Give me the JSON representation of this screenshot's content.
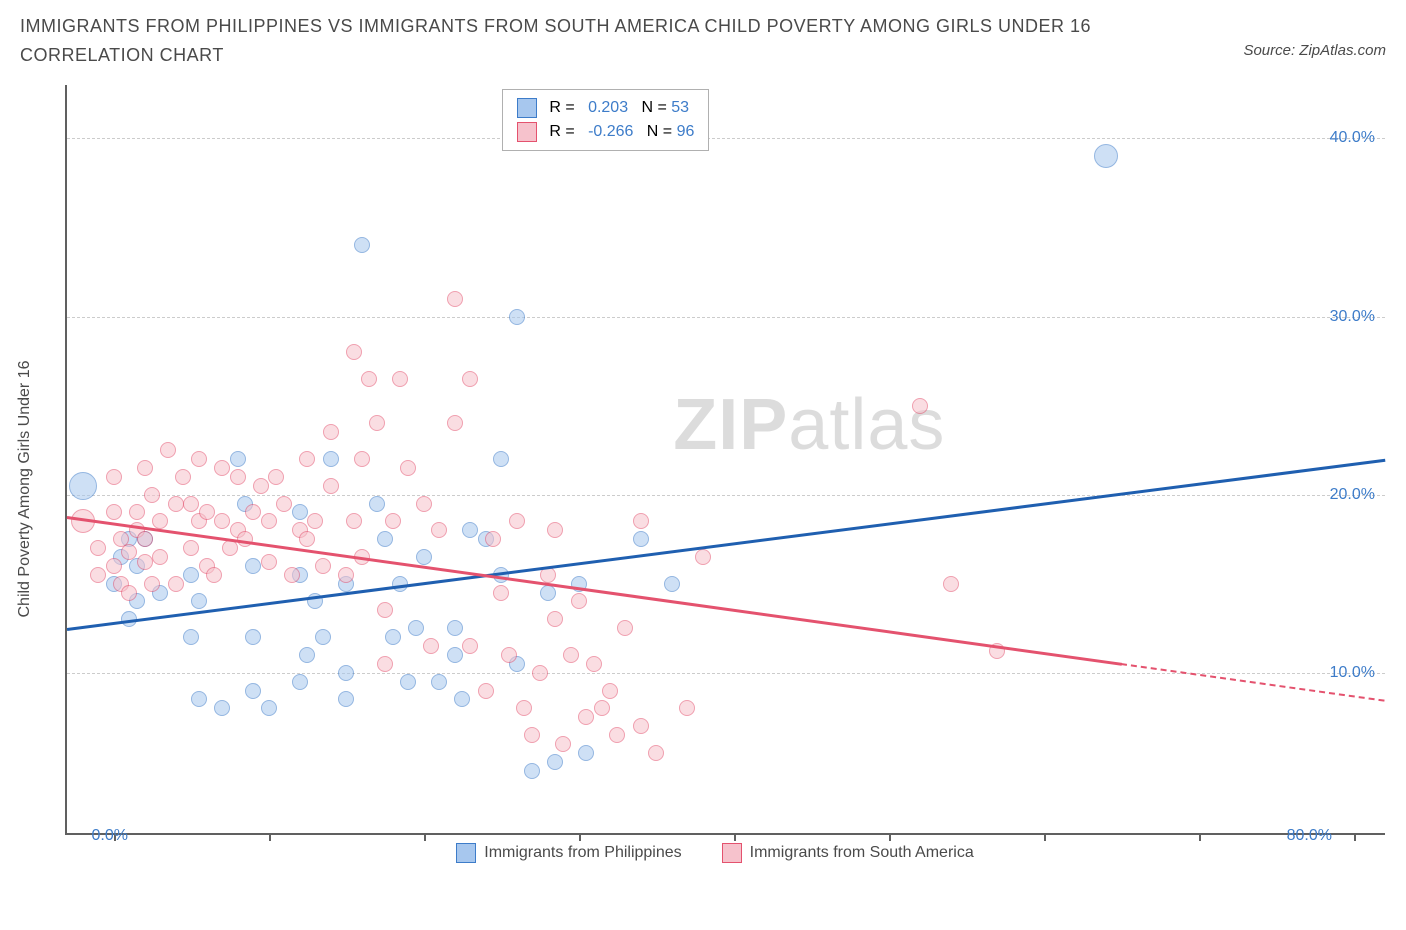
{
  "title": "IMMIGRANTS FROM PHILIPPINES VS IMMIGRANTS FROM SOUTH AMERICA CHILD POVERTY AMONG GIRLS UNDER 16 CORRELATION CHART",
  "source": "Source: ZipAtlas.com",
  "y_axis_label": "Child Poverty Among Girls Under 16",
  "watermark_bold": "ZIP",
  "watermark_light": "atlas",
  "chart": {
    "type": "scatter",
    "background_color": "#ffffff",
    "grid_color": "#cccccc",
    "axis_color": "#606060",
    "tick_label_color": "#3d7cc9",
    "xlim": [
      -3,
      82
    ],
    "ylim": [
      1,
      43
    ],
    "y_ticks": [
      10,
      20,
      30,
      40
    ],
    "y_tick_labels": [
      "10.0%",
      "20.0%",
      "30.0%",
      "40.0%"
    ],
    "x_ticks": [
      0,
      10,
      20,
      30,
      40,
      50,
      60,
      70,
      80
    ],
    "x_tick_labels": {
      "0": "0.0%",
      "80": "80.0%"
    },
    "point_radius": 8,
    "point_opacity": 0.55,
    "point_border_width": 1.2
  },
  "series": [
    {
      "name": "Immigrants from Philippines",
      "fill_color": "#a7c7ee",
      "stroke_color": "#3d7cc9",
      "line_color": "#1f5fb0",
      "R": "0.203",
      "N": "53",
      "trend": {
        "x1": -3,
        "y1": 12.5,
        "x2": 82,
        "y2": 22.0,
        "dash_from_x": null
      },
      "points": [
        [
          -2,
          20.5,
          14
        ],
        [
          0,
          15
        ],
        [
          0.5,
          16.5
        ],
        [
          1,
          17.5
        ],
        [
          1.5,
          16
        ],
        [
          1.5,
          14
        ],
        [
          2,
          17.5
        ],
        [
          1,
          13
        ],
        [
          3,
          14.5
        ],
        [
          5,
          15.5
        ],
        [
          5.5,
          14
        ],
        [
          5,
          12
        ],
        [
          5.5,
          8.5
        ],
        [
          7,
          8
        ],
        [
          8,
          22
        ],
        [
          8.5,
          19.5
        ],
        [
          9,
          16
        ],
        [
          9,
          12
        ],
        [
          9,
          9
        ],
        [
          10,
          8
        ],
        [
          12,
          15.5
        ],
        [
          12,
          19
        ],
        [
          12.5,
          11
        ],
        [
          12,
          9.5
        ],
        [
          13,
          14
        ],
        [
          13.5,
          12
        ],
        [
          14,
          22
        ],
        [
          15,
          8.5
        ],
        [
          15,
          15
        ],
        [
          15,
          10
        ],
        [
          16,
          34
        ],
        [
          17,
          19.5
        ],
        [
          17.5,
          17.5
        ],
        [
          18,
          12
        ],
        [
          18.5,
          15
        ],
        [
          19,
          9.5
        ],
        [
          19.5,
          12.5
        ],
        [
          20,
          16.5
        ],
        [
          21,
          9.5
        ],
        [
          22,
          11
        ],
        [
          22,
          12.5
        ],
        [
          22.5,
          8.5
        ],
        [
          23,
          18
        ],
        [
          24,
          17.5
        ],
        [
          25,
          15.5
        ],
        [
          25,
          22
        ],
        [
          26,
          30
        ],
        [
          26,
          10.5
        ],
        [
          27,
          4.5
        ],
        [
          28,
          14.5
        ],
        [
          28.5,
          5
        ],
        [
          30,
          15
        ],
        [
          30.5,
          5.5
        ],
        [
          34,
          17.5
        ],
        [
          36,
          15
        ],
        [
          64,
          39,
          12
        ]
      ]
    },
    {
      "name": "Immigrants from South America",
      "fill_color": "#f6c2cc",
      "stroke_color": "#e4526e",
      "line_color": "#e4526e",
      "R": "-0.266",
      "N": "96",
      "trend": {
        "x1": -3,
        "y1": 18.8,
        "x2": 82,
        "y2": 8.5,
        "dash_from_x": 65
      },
      "points": [
        [
          -2,
          18.5,
          12
        ],
        [
          -1,
          17
        ],
        [
          -1,
          15.5
        ],
        [
          0,
          21
        ],
        [
          0,
          19
        ],
        [
          0.5,
          17.5
        ],
        [
          0,
          16
        ],
        [
          0.5,
          15
        ],
        [
          1,
          16.8
        ],
        [
          1,
          14.5
        ],
        [
          1.5,
          19
        ],
        [
          1.5,
          18
        ],
        [
          2,
          21.5
        ],
        [
          2,
          17.5
        ],
        [
          2,
          16.2
        ],
        [
          2.5,
          20
        ],
        [
          2.5,
          15
        ],
        [
          3,
          18.5
        ],
        [
          3,
          16.5
        ],
        [
          3.5,
          22.5
        ],
        [
          4,
          19.5
        ],
        [
          4,
          15
        ],
        [
          4.5,
          21
        ],
        [
          5,
          19.5
        ],
        [
          5,
          17
        ],
        [
          5.5,
          18.5
        ],
        [
          5.5,
          22
        ],
        [
          6,
          16
        ],
        [
          6,
          19
        ],
        [
          6.5,
          15.5
        ],
        [
          7,
          21.5
        ],
        [
          7,
          18.5
        ],
        [
          7.5,
          17
        ],
        [
          8,
          18
        ],
        [
          8,
          21
        ],
        [
          8.5,
          17.5
        ],
        [
          9,
          19
        ],
        [
          9.5,
          20.5
        ],
        [
          10,
          16.2
        ],
        [
          10,
          18.5
        ],
        [
          10.5,
          21
        ],
        [
          11,
          19.5
        ],
        [
          11.5,
          15.5
        ],
        [
          12,
          18
        ],
        [
          12.5,
          22
        ],
        [
          12.5,
          17.5
        ],
        [
          13,
          18.5
        ],
        [
          13.5,
          16
        ],
        [
          14,
          23.5
        ],
        [
          14,
          20.5
        ],
        [
          15,
          15.5
        ],
        [
          15.5,
          28
        ],
        [
          15.5,
          18.5
        ],
        [
          16,
          22
        ],
        [
          16,
          16.5
        ],
        [
          16.5,
          26.5
        ],
        [
          17,
          24
        ],
        [
          17.5,
          13.5
        ],
        [
          17.5,
          10.5
        ],
        [
          18,
          18.5
        ],
        [
          18.5,
          26.5
        ],
        [
          19,
          21.5
        ],
        [
          20,
          19.5
        ],
        [
          20.5,
          11.5
        ],
        [
          21,
          18
        ],
        [
          22,
          31
        ],
        [
          22,
          24
        ],
        [
          23,
          26.5
        ],
        [
          23,
          11.5
        ],
        [
          24,
          9
        ],
        [
          24.5,
          17.5
        ],
        [
          25,
          14.5
        ],
        [
          25.5,
          11
        ],
        [
          26,
          18.5
        ],
        [
          26.5,
          8
        ],
        [
          27,
          6.5
        ],
        [
          27.5,
          10
        ],
        [
          28,
          15.5
        ],
        [
          28.5,
          13
        ],
        [
          28.5,
          18
        ],
        [
          29,
          6
        ],
        [
          29.5,
          11
        ],
        [
          30,
          14
        ],
        [
          30.5,
          7.5
        ],
        [
          31,
          10.5
        ],
        [
          31.5,
          8
        ],
        [
          32,
          9
        ],
        [
          32.5,
          6.5
        ],
        [
          33,
          12.5
        ],
        [
          34,
          7
        ],
        [
          34,
          18.5
        ],
        [
          35,
          5.5
        ],
        [
          37,
          8
        ],
        [
          38,
          16.5
        ],
        [
          52,
          25
        ],
        [
          54,
          15
        ],
        [
          57,
          11.2
        ]
      ]
    }
  ],
  "bottom_legend": [
    {
      "label": "Immigrants from Philippines",
      "fill": "#a7c7ee",
      "stroke": "#3d7cc9"
    },
    {
      "label": "Immigrants from South America",
      "fill": "#f6c2cc",
      "stroke": "#e4526e"
    }
  ]
}
